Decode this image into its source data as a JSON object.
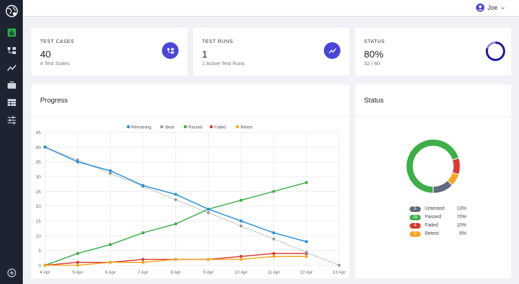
{
  "user": {
    "name": "Joe"
  },
  "stats": [
    {
      "label": "TEST CASES",
      "value": "40",
      "sub": "4 Test Suites",
      "icon": "hierarchy-icon"
    },
    {
      "label": "TEST RUNS",
      "value": "1",
      "sub": "1 Active Test Runs",
      "icon": "trend-line-icon"
    },
    {
      "label": "STATUS",
      "value": "80%",
      "sub": "32 / 40",
      "progress": 0.8
    }
  ],
  "progress_panel": {
    "title": "Progress"
  },
  "status_panel": {
    "title": "Status",
    "items": [
      {
        "count": "5",
        "name": "Untested",
        "pct": "13%",
        "color": "#5f6b7f"
      },
      {
        "count": "28",
        "name": "Passed",
        "pct": "70%",
        "color": "#3fae49"
      },
      {
        "count": "4",
        "name": "Failed",
        "pct": "10%",
        "color": "#d63b34"
      },
      {
        "count": "3",
        "name": "Retest",
        "pct": "8%",
        "color": "#f5a623"
      }
    ]
  },
  "colors": {
    "accent": "#4a46d6",
    "sidebar": "#1d2330",
    "active_nav": "#28a745"
  },
  "nav": [
    "dashboard-icon",
    "hierarchy-icon",
    "trend-line-icon",
    "briefcase-icon",
    "table-icon",
    "sliders-icon",
    "add-circle-icon"
  ],
  "chart_data": {
    "type": "line",
    "categories": [
      "4 Apr",
      "5 Apr",
      "6 Apr",
      "7 Apr",
      "8 Apr",
      "9 Apr",
      "10 Apr",
      "11 Apr",
      "12 Apr",
      "13 Apr"
    ],
    "ylim": [
      0,
      45
    ],
    "yticks": [
      0,
      5,
      10,
      15,
      20,
      25,
      30,
      35,
      40,
      45
    ],
    "grid": true,
    "legend_position": "top-center",
    "series": [
      {
        "name": "Remaining",
        "color": "#2a8fd8",
        "values": [
          40,
          35,
          32,
          27,
          24,
          19,
          15,
          11,
          8,
          null
        ]
      },
      {
        "name": "Ideal",
        "color": "#999999",
        "dashed": true,
        "values": [
          40,
          35.6,
          31.1,
          26.7,
          22.2,
          17.8,
          13.3,
          8.9,
          4.4,
          0
        ]
      },
      {
        "name": "Passed",
        "color": "#3fae49",
        "values": [
          0,
          4,
          7,
          11,
          14,
          19,
          22,
          25,
          28,
          null
        ]
      },
      {
        "name": "Failed",
        "color": "#d63b34",
        "values": [
          0,
          1,
          1,
          2,
          2,
          2,
          3,
          4,
          4,
          null
        ]
      },
      {
        "name": "Retest",
        "color": "#f5a623",
        "values": [
          0,
          0,
          1,
          1,
          2,
          2,
          2,
          3,
          3,
          null
        ]
      }
    ]
  }
}
